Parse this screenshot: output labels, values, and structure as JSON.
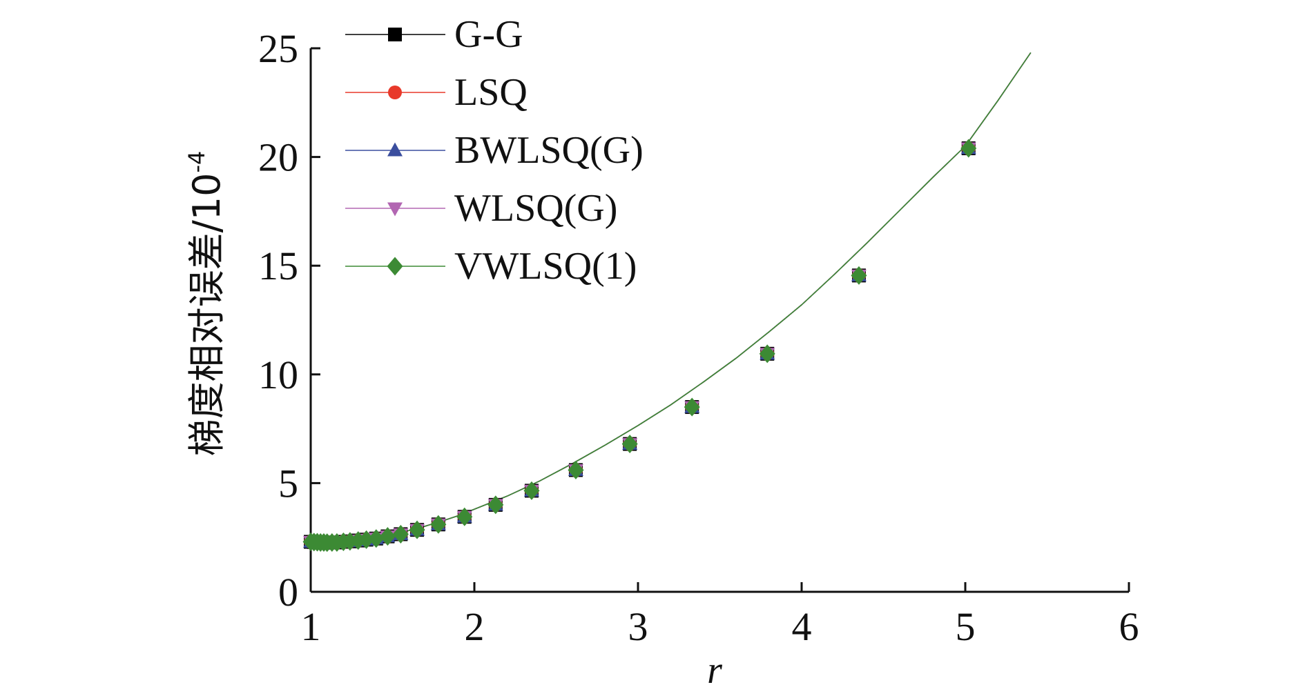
{
  "chart_data": {
    "type": "line",
    "title": "",
    "xlabel": "r",
    "ylabel": "梯度相对误差/10",
    "ylabel_exponent": "-4",
    "xlim": [
      1,
      6
    ],
    "ylim": [
      0,
      25
    ],
    "xticks": [
      "1",
      "2",
      "3",
      "4",
      "5",
      "6"
    ],
    "yticks": [
      "0",
      "5",
      "10",
      "15",
      "20",
      "25"
    ],
    "grid": false,
    "legend_position": "top-left",
    "curve": {
      "x": [
        1.0,
        1.05,
        1.1,
        1.15,
        1.2,
        1.3,
        1.4,
        1.5,
        1.6,
        1.7,
        1.8,
        1.9,
        2.0,
        2.2,
        2.4,
        2.6,
        2.8,
        3.0,
        3.2,
        3.4,
        3.6,
        3.8,
        4.0,
        4.2,
        4.4,
        4.6,
        4.8,
        5.0,
        5.2,
        5.4
      ],
      "y": [
        2.3,
        2.28,
        2.26,
        2.27,
        2.3,
        2.38,
        2.5,
        2.65,
        2.82,
        3.02,
        3.25,
        3.5,
        3.8,
        4.4,
        5.1,
        5.9,
        6.75,
        7.65,
        8.6,
        9.65,
        10.75,
        11.95,
        13.2,
        14.6,
        16.05,
        17.55,
        19.05,
        20.5,
        22.6,
        24.8
      ]
    },
    "markers": {
      "x": [
        1.0,
        1.02,
        1.04,
        1.06,
        1.08,
        1.1,
        1.13,
        1.16,
        1.2,
        1.24,
        1.29,
        1.34,
        1.4,
        1.47,
        1.55,
        1.65,
        1.78,
        1.94,
        2.13,
        2.35,
        2.62,
        2.95,
        3.33,
        3.79,
        4.35,
        5.02
      ],
      "y": [
        2.3,
        2.29,
        2.28,
        2.27,
        2.27,
        2.26,
        2.27,
        2.27,
        2.3,
        2.32,
        2.36,
        2.4,
        2.45,
        2.55,
        2.65,
        2.85,
        3.1,
        3.45,
        4.0,
        4.65,
        5.6,
        6.8,
        8.5,
        10.95,
        14.55,
        20.4
      ]
    },
    "series": [
      {
        "name": "G-G",
        "color": "#000000",
        "marker": "square"
      },
      {
        "name": "LSQ",
        "color": "#e8392a",
        "marker": "circle"
      },
      {
        "name": "BWLSQ(G)",
        "color": "#3a4e9e",
        "marker": "triangle-up"
      },
      {
        "name": "WLSQ(G)",
        "color": "#b266b2",
        "marker": "triangle-down"
      },
      {
        "name": "VWLSQ(1)",
        "color": "#3c8a34",
        "marker": "diamond"
      }
    ]
  }
}
